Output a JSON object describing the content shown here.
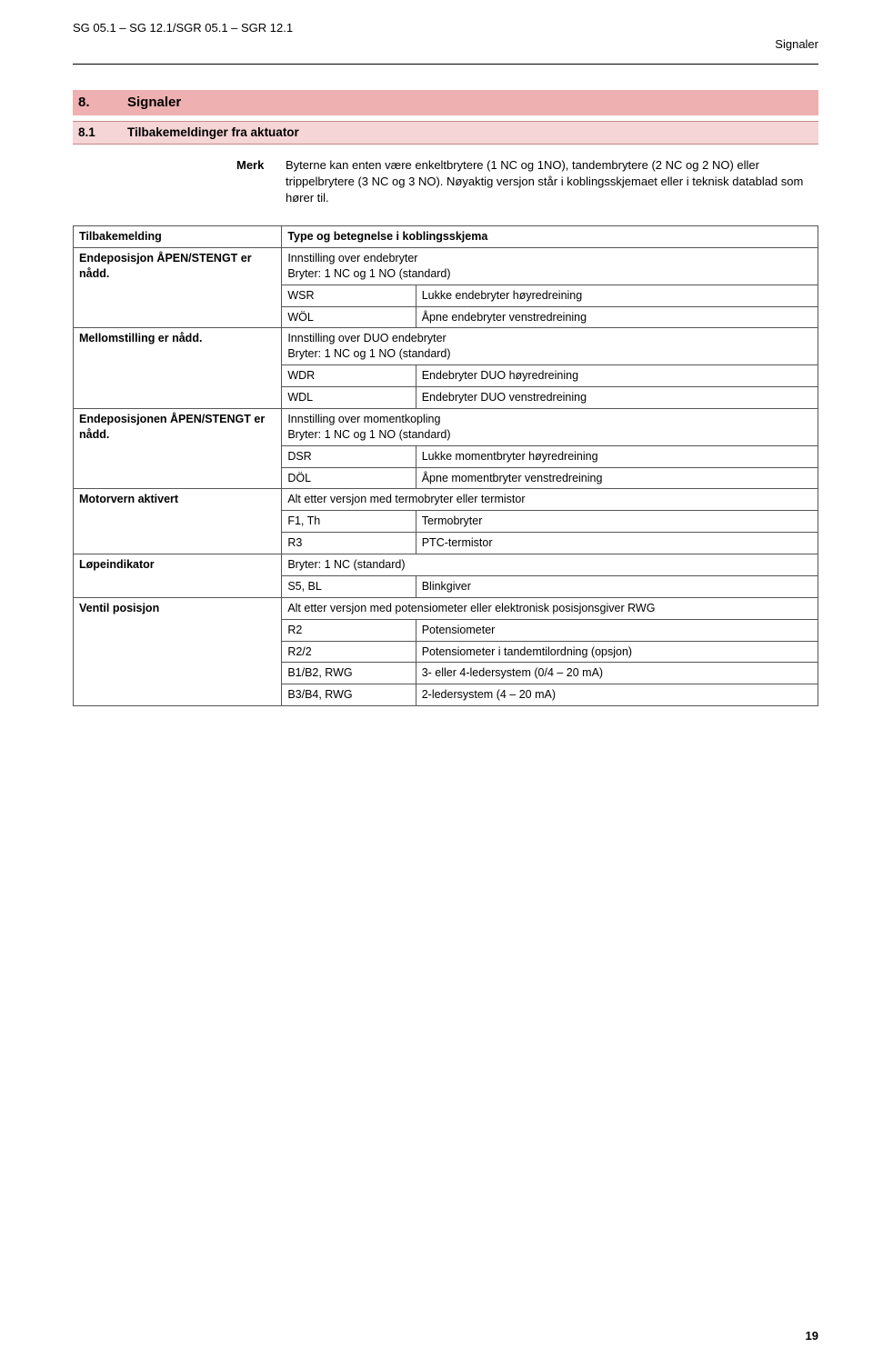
{
  "header": {
    "left": "SG 05.1 – SG 12.1/SGR 05.1 – SGR 12.1",
    "right": "Signaler"
  },
  "section": {
    "number": "8.",
    "title": "Signaler"
  },
  "subsection": {
    "number": "8.1",
    "title": "Tilbakemeldinger fra aktuator"
  },
  "merk": {
    "label": "Merk",
    "text": "Byterne kan enten være enkeltbrytere (1 NC og 1NO), tandembrytere (2 NC og 2 NO) eller trippelbrytere (3 NC og 3 NO). Nøyaktig versjon står i koblingsskjemaet eller i teknisk datablad som hører til."
  },
  "table": {
    "header": {
      "col1": "Tilbakemelding",
      "col2": "Type og betegnelse i koblingsskjema"
    },
    "groups": [
      {
        "label": "Endeposisjon ÅPEN/STENGT er nådd.",
        "intro": "Innstilling over endebryter\nBryter: 1 NC og 1 NO (standard)",
        "rows": [
          {
            "code": "WSR",
            "desc": "Lukke endebryter høyredreining"
          },
          {
            "code": "WÖL",
            "desc": "Åpne endebryter venstredreining"
          }
        ]
      },
      {
        "label": "Mellomstilling er nådd.",
        "intro": "Innstilling over DUO endebryter\nBryter: 1 NC og 1 NO (standard)",
        "rows": [
          {
            "code": "WDR",
            "desc": "Endebryter DUO høyredreining"
          },
          {
            "code": "WDL",
            "desc": "Endebryter DUO venstredreining"
          }
        ]
      },
      {
        "label": "Endeposisjonen ÅPEN/STENGT er nådd.",
        "intro": "Innstilling over momentkopling\nBryter: 1 NC og 1 NO (standard)",
        "rows": [
          {
            "code": "DSR",
            "desc": "Lukke momentbryter høyredreining"
          },
          {
            "code": "DÖL",
            "desc": "Åpne momentbryter venstredreining"
          }
        ]
      },
      {
        "label": "Motorvern aktivert",
        "intro": "Alt etter versjon med termobryter eller termistor",
        "rows": [
          {
            "code": "F1, Th",
            "desc": "Termobryter"
          },
          {
            "code": "R3",
            "desc": "PTC-termistor"
          }
        ]
      },
      {
        "label": "Løpeindikator",
        "intro": "Bryter: 1 NC (standard)",
        "rows": [
          {
            "code": "S5, BL",
            "desc": "Blinkgiver"
          }
        ]
      },
      {
        "label": "Ventil posisjon",
        "intro": "Alt etter versjon med potensiometer eller elektronisk posisjonsgiver RWG",
        "rows": [
          {
            "code": "R2",
            "desc": "Potensiometer"
          },
          {
            "code": "R2/2",
            "desc": "Potensiometer i tandemtilordning (opsjon)"
          },
          {
            "code": "B1/B2, RWG",
            "desc": "3- eller 4-ledersystem (0/4 – 20 mA)"
          },
          {
            "code": "B3/B4, RWG",
            "desc": "2-ledersystem (4 – 20 mA)"
          }
        ]
      }
    ]
  },
  "page_number": "19"
}
